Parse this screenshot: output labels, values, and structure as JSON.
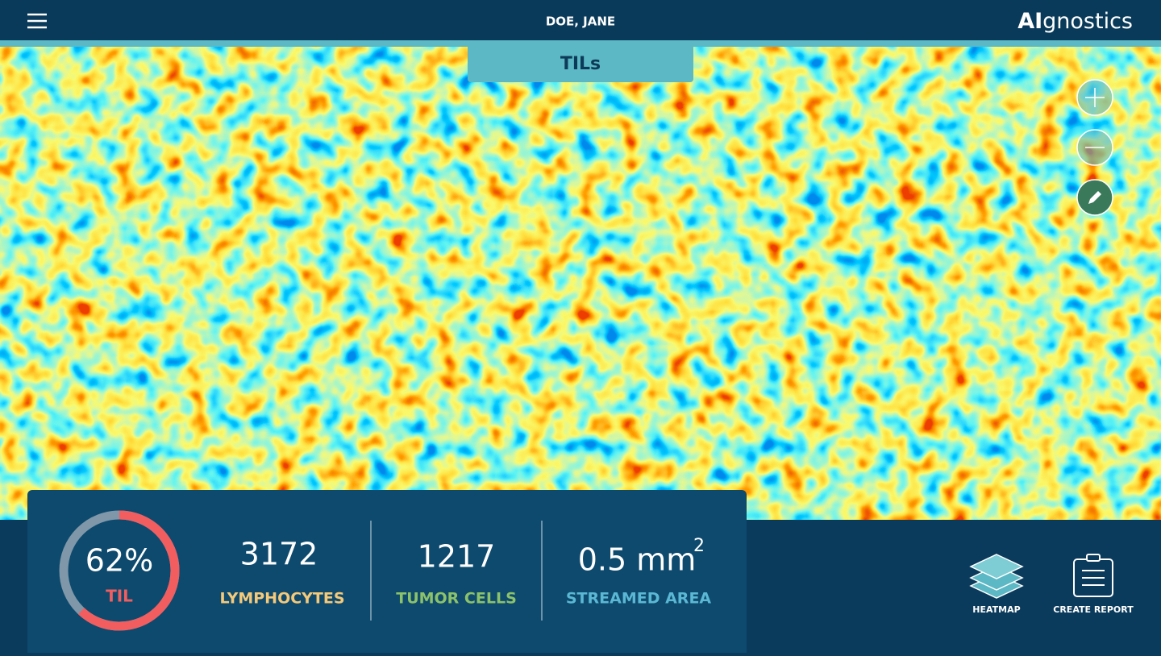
{
  "header": {
    "patient": "DOE, JANE",
    "logo_bold": "AI",
    "logo_rest": "gnostics"
  },
  "view": {
    "tab": "TILs"
  },
  "summary": {
    "til": {
      "value": 62,
      "value_label": "62%",
      "label": "TIL"
    },
    "stats": [
      {
        "value": "3172",
        "label": "LYMPHOCYTES",
        "color": "#f5c97a"
      },
      {
        "value": "1217",
        "label": "TUMOR CELLS",
        "color": "#8cc26a"
      }
    ],
    "area": {
      "value": "0.5 mm",
      "exponent": "2",
      "label": "STREAMED AREA",
      "color": "#5bb8d4"
    }
  },
  "actions": {
    "heatmap": "HEATMAP",
    "report": "CREATE REPORT"
  }
}
